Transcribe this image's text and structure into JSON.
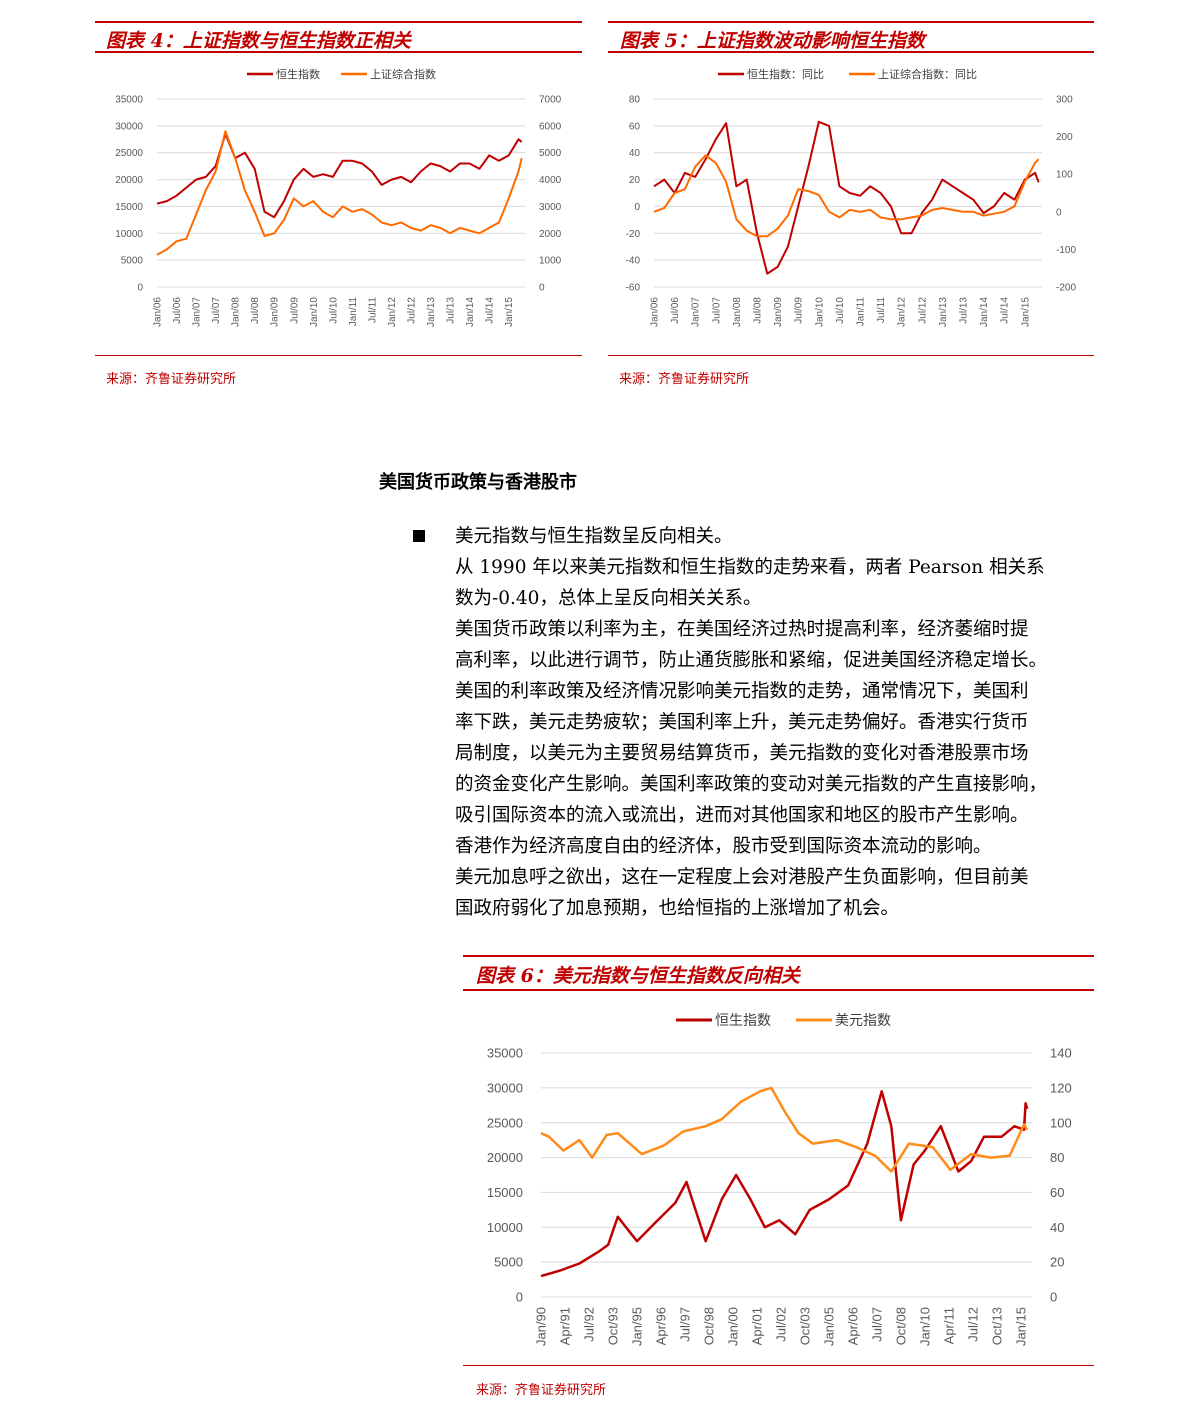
{
  "colors": {
    "accent": "#c00000",
    "hsi": "#c00000",
    "orange": "#ff6a00",
    "usd": "#ff8c1a"
  },
  "fig4": {
    "title": "图表 4：上证指数与恒生指数正相关",
    "source": "来源：齐鲁证券研究所",
    "chart_data": {
      "type": "line",
      "title": "",
      "legend": [
        "恒生指数",
        "上证综合指数"
      ],
      "legend_position": "top",
      "x_tick_labels": [
        "Jan/06",
        "Jul/06",
        "Jan/07",
        "Jul/07",
        "Jan/08",
        "Jul/08",
        "Jan/09",
        "Jul/09",
        "Jan/10",
        "Jul/10",
        "Jan/11",
        "Jul/11",
        "Jan/12",
        "Jul/12",
        "Jan/13",
        "Jul/13",
        "Jan/14",
        "Jul/14",
        "Jan/15"
      ],
      "y_left_ticks": [
        "0",
        "5000",
        "10000",
        "15000",
        "20000",
        "25000",
        "30000",
        "35000"
      ],
      "y_right_ticks": [
        "0",
        "1000",
        "2000",
        "3000",
        "4000",
        "5000",
        "6000",
        "7000"
      ],
      "ylim_left": [
        0,
        35000
      ],
      "ylim_right": [
        0,
        7000
      ],
      "grid": "horizontal",
      "series": [
        {
          "name": "恒生指数",
          "axis": "left",
          "x": [
            "2006-01",
            "2006-04",
            "2006-07",
            "2006-10",
            "2007-01",
            "2007-04",
            "2007-07",
            "2007-10",
            "2008-01",
            "2008-04",
            "2008-07",
            "2008-10",
            "2009-01",
            "2009-04",
            "2009-07",
            "2009-10",
            "2010-01",
            "2010-04",
            "2010-07",
            "2010-10",
            "2011-01",
            "2011-04",
            "2011-07",
            "2011-10",
            "2012-01",
            "2012-04",
            "2012-07",
            "2012-10",
            "2013-01",
            "2013-04",
            "2013-07",
            "2013-10",
            "2014-01",
            "2014-04",
            "2014-07",
            "2014-10",
            "2015-01",
            "2015-04",
            "2015-05"
          ],
          "values": [
            15500,
            16000,
            17000,
            18500,
            20000,
            20500,
            22500,
            28500,
            24000,
            25000,
            22000,
            14000,
            13000,
            16000,
            20000,
            22000,
            20500,
            21000,
            20500,
            23500,
            23500,
            23000,
            21500,
            19000,
            20000,
            20500,
            19500,
            21500,
            23000,
            22500,
            21500,
            23000,
            23000,
            22000,
            24500,
            23500,
            24500,
            27500,
            27000
          ]
        },
        {
          "name": "上证综合指数",
          "axis": "right",
          "x": [
            "2006-01",
            "2006-04",
            "2006-07",
            "2006-10",
            "2007-01",
            "2007-04",
            "2007-07",
            "2007-10",
            "2008-01",
            "2008-04",
            "2008-07",
            "2008-10",
            "2009-01",
            "2009-04",
            "2009-07",
            "2009-10",
            "2010-01",
            "2010-04",
            "2010-07",
            "2010-10",
            "2011-01",
            "2011-04",
            "2011-07",
            "2011-10",
            "2012-01",
            "2012-04",
            "2012-07",
            "2012-10",
            "2013-01",
            "2013-04",
            "2013-07",
            "2013-10",
            "2014-01",
            "2014-04",
            "2014-07",
            "2014-10",
            "2015-01",
            "2015-04",
            "2015-05"
          ],
          "values": [
            1200,
            1400,
            1700,
            1800,
            2700,
            3600,
            4300,
            5800,
            4800,
            3600,
            2800,
            1900,
            2000,
            2500,
            3300,
            3000,
            3200,
            2800,
            2600,
            3000,
            2800,
            2900,
            2700,
            2400,
            2300,
            2400,
            2200,
            2100,
            2300,
            2200,
            2000,
            2200,
            2100,
            2000,
            2200,
            2400,
            3300,
            4300,
            4800
          ]
        }
      ]
    }
  },
  "fig5": {
    "title": "图表 5：上证指数波动影响恒生指数",
    "source": "来源：齐鲁证券研究所",
    "chart_data": {
      "type": "line",
      "title": "",
      "legend": [
        "恒生指数：同比",
        "上证综合指数：同比"
      ],
      "legend_position": "top",
      "x_tick_labels": [
        "Jan/06",
        "Jul/06",
        "Jan/07",
        "Jul/07",
        "Jan/08",
        "Jul/08",
        "Jan/09",
        "Jul/09",
        "Jan/10",
        "Jul/10",
        "Jan/11",
        "Jul/11",
        "Jan/12",
        "Jul/12",
        "Jan/13",
        "Jul/13",
        "Jan/14",
        "Jul/14",
        "Jan/15"
      ],
      "y_left_ticks": [
        "-60",
        "-40",
        "-20",
        "0",
        "20",
        "40",
        "60",
        "80"
      ],
      "y_right_ticks": [
        "-200",
        "-100",
        "0",
        "100",
        "200",
        "300"
      ],
      "ylim_left": [
        -60,
        80
      ],
      "ylim_right": [
        -200,
        300
      ],
      "grid": "horizontal",
      "series": [
        {
          "name": "恒生指数：同比",
          "axis": "left",
          "x": [
            "2006-01",
            "2006-04",
            "2006-07",
            "2006-10",
            "2007-01",
            "2007-04",
            "2007-07",
            "2007-10",
            "2008-01",
            "2008-04",
            "2008-07",
            "2008-10",
            "2009-01",
            "2009-04",
            "2009-07",
            "2009-10",
            "2010-01",
            "2010-04",
            "2010-07",
            "2010-10",
            "2011-01",
            "2011-04",
            "2011-07",
            "2011-10",
            "2012-01",
            "2012-04",
            "2012-07",
            "2012-10",
            "2013-01",
            "2013-04",
            "2013-07",
            "2013-10",
            "2014-01",
            "2014-04",
            "2014-07",
            "2014-10",
            "2015-01",
            "2015-04",
            "2015-05"
          ],
          "values": [
            15,
            20,
            10,
            25,
            22,
            35,
            50,
            62,
            15,
            20,
            -20,
            -50,
            -45,
            -30,
            0,
            30,
            63,
            60,
            15,
            10,
            8,
            15,
            10,
            0,
            -20,
            -20,
            -5,
            5,
            20,
            15,
            10,
            5,
            -5,
            0,
            10,
            5,
            20,
            25,
            18
          ]
        },
        {
          "name": "上证综合指数：同比",
          "axis": "right",
          "x": [
            "2006-01",
            "2006-04",
            "2006-07",
            "2006-10",
            "2007-01",
            "2007-04",
            "2007-07",
            "2007-10",
            "2008-01",
            "2008-04",
            "2008-07",
            "2008-10",
            "2009-01",
            "2009-04",
            "2009-07",
            "2009-10",
            "2010-01",
            "2010-04",
            "2010-07",
            "2010-10",
            "2011-01",
            "2011-04",
            "2011-07",
            "2011-10",
            "2012-01",
            "2012-04",
            "2012-07",
            "2012-10",
            "2013-01",
            "2013-04",
            "2013-07",
            "2013-10",
            "2014-01",
            "2014-04",
            "2014-07",
            "2014-10",
            "2015-01",
            "2015-04",
            "2015-05"
          ],
          "values": [
            0,
            10,
            50,
            60,
            120,
            150,
            130,
            80,
            -20,
            -50,
            -65,
            -65,
            -45,
            -10,
            60,
            55,
            45,
            0,
            -15,
            5,
            0,
            5,
            -15,
            -20,
            -20,
            -15,
            -10,
            5,
            10,
            5,
            0,
            0,
            -10,
            -5,
            0,
            15,
            80,
            130,
            140
          ]
        }
      ]
    }
  },
  "section": {
    "title": "美国货币政策与香港股市",
    "bullet": "美元指数与恒生指数呈反向相关。",
    "lines": [
      "从 1990 年以来美元指数和恒生指数的走势来看，两者 Pearson 相关系",
      "数为-0.40，总体上呈反向相关关系。",
      "美国货币政策以利率为主，在美国经济过热时提高利率，经济萎缩时提",
      "高利率，以此进行调节，防止通货膨胀和紧缩，促进美国经济稳定增长。",
      "美国的利率政策及经济情况影响美元指数的走势，通常情况下，美国利",
      "率下跌，美元走势疲软；美国利率上升，美元走势偏好。香港实行货币",
      "局制度，以美元为主要贸易结算货币，美元指数的变化对香港股票市场",
      "的资金变化产生影响。美国利率政策的变动对美元指数的产生直接影响，",
      "吸引国际资本的流入或流出，进而对其他国家和地区的股市产生影响。",
      "香港作为经济高度自由的经济体，股市受到国际资本流动的影响。",
      "美元加息呼之欲出，这在一定程度上会对港股产生负面影响，但目前美",
      "国政府弱化了加息预期，也给恒指的上涨增加了机会。"
    ]
  },
  "fig6": {
    "title": "图表 6：美元指数与恒生指数反向相关",
    "source": "来源：齐鲁证券研究所",
    "chart_data": {
      "type": "line",
      "title": "",
      "legend": [
        "恒生指数",
        "美元指数"
      ],
      "legend_position": "top",
      "x_tick_labels": [
        "Jan/90",
        "Apr/91",
        "Jul/92",
        "Oct/93",
        "Jan/95",
        "Apr/96",
        "Jul/97",
        "Oct/98",
        "Jan/00",
        "Apr/01",
        "Jul/02",
        "Oct/03",
        "Jan/05",
        "Apr/06",
        "Jul/07",
        "Oct/08",
        "Jan/10",
        "Apr/11",
        "Jul/12",
        "Oct/13",
        "Jan/15"
      ],
      "y_left_ticks": [
        "0",
        "5000",
        "10000",
        "15000",
        "20000",
        "25000",
        "30000",
        "35000"
      ],
      "y_right_ticks": [
        "0",
        "20",
        "40",
        "60",
        "80",
        "100",
        "120",
        "140"
      ],
      "ylim_left": [
        0,
        35000
      ],
      "ylim_right": [
        0,
        140
      ],
      "grid": "horizontal",
      "series": [
        {
          "name": "恒生指数",
          "axis": "left",
          "x": [
            "1990-01",
            "1991-01",
            "1992-01",
            "1993-01",
            "1993-07",
            "1994-01",
            "1995-01",
            "1996-01",
            "1997-01",
            "1997-08",
            "1998-08",
            "1999-06",
            "2000-03",
            "2000-12",
            "2001-09",
            "2002-06",
            "2003-04",
            "2004-01",
            "2005-01",
            "2006-01",
            "2007-01",
            "2007-10",
            "2008-04",
            "2008-10",
            "2009-06",
            "2010-01",
            "2010-11",
            "2011-10",
            "2012-06",
            "2013-02",
            "2014-01",
            "2014-09",
            "2015-03",
            "2015-04",
            "2015-05"
          ],
          "values": [
            3000,
            3800,
            4800,
            6500,
            7500,
            11500,
            8000,
            10800,
            13500,
            16500,
            8000,
            14000,
            17500,
            14000,
            10000,
            11000,
            9000,
            12500,
            14000,
            16000,
            22000,
            29500,
            24500,
            11000,
            19000,
            21000,
            24500,
            18000,
            19500,
            23000,
            23000,
            24500,
            24000,
            27800,
            27000
          ]
        },
        {
          "name": "美元指数",
          "axis": "right",
          "x": [
            "1990-01",
            "1990-06",
            "1991-03",
            "1992-01",
            "1992-09",
            "1993-06",
            "1994-01",
            "1995-04",
            "1996-06",
            "1997-06",
            "1998-08",
            "1999-06",
            "2000-06",
            "2001-06",
            "2002-01",
            "2002-09",
            "2003-06",
            "2004-03",
            "2005-06",
            "2006-06",
            "2007-06",
            "2008-04",
            "2009-03",
            "2010-06",
            "2011-05",
            "2012-06",
            "2013-06",
            "2014-06",
            "2015-03",
            "2015-05"
          ],
          "values": [
            94,
            92,
            84,
            90,
            80,
            93,
            94,
            82,
            87,
            95,
            98,
            102,
            112,
            118,
            120,
            107,
            94,
            88,
            90,
            86,
            81,
            72,
            88,
            86,
            73,
            82,
            80,
            81,
            99,
            96
          ]
        }
      ]
    }
  }
}
